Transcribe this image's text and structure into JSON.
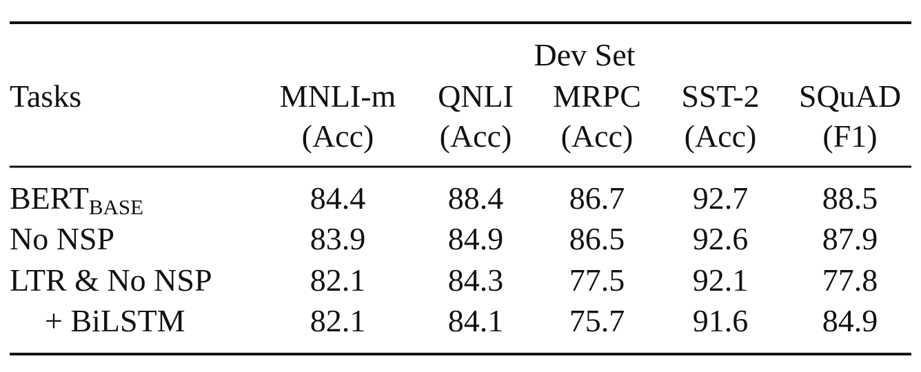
{
  "table": {
    "group_header": "Dev Set",
    "row_header": "Tasks",
    "columns": [
      {
        "name": "MNLI-m",
        "metric": "(Acc)"
      },
      {
        "name": "QNLI",
        "metric": "(Acc)"
      },
      {
        "name": "MRPC",
        "metric": "(Acc)"
      },
      {
        "name": "SST-2",
        "metric": "(Acc)"
      },
      {
        "name": "SQuAD",
        "metric": "(F1)"
      }
    ],
    "rows": [
      {
        "label": "BERT",
        "sub": "BASE",
        "values": [
          84.4,
          88.4,
          86.7,
          92.7,
          88.5
        ]
      },
      {
        "label": "No NSP",
        "values": [
          83.9,
          84.9,
          86.5,
          92.6,
          87.9
        ]
      },
      {
        "label": "LTR & No NSP",
        "values": [
          82.1,
          84.3,
          77.5,
          92.1,
          77.8
        ]
      },
      {
        "label": "+ BiLSTM",
        "indent": true,
        "values": [
          82.1,
          84.1,
          75.7,
          91.6,
          84.9
        ]
      }
    ]
  }
}
